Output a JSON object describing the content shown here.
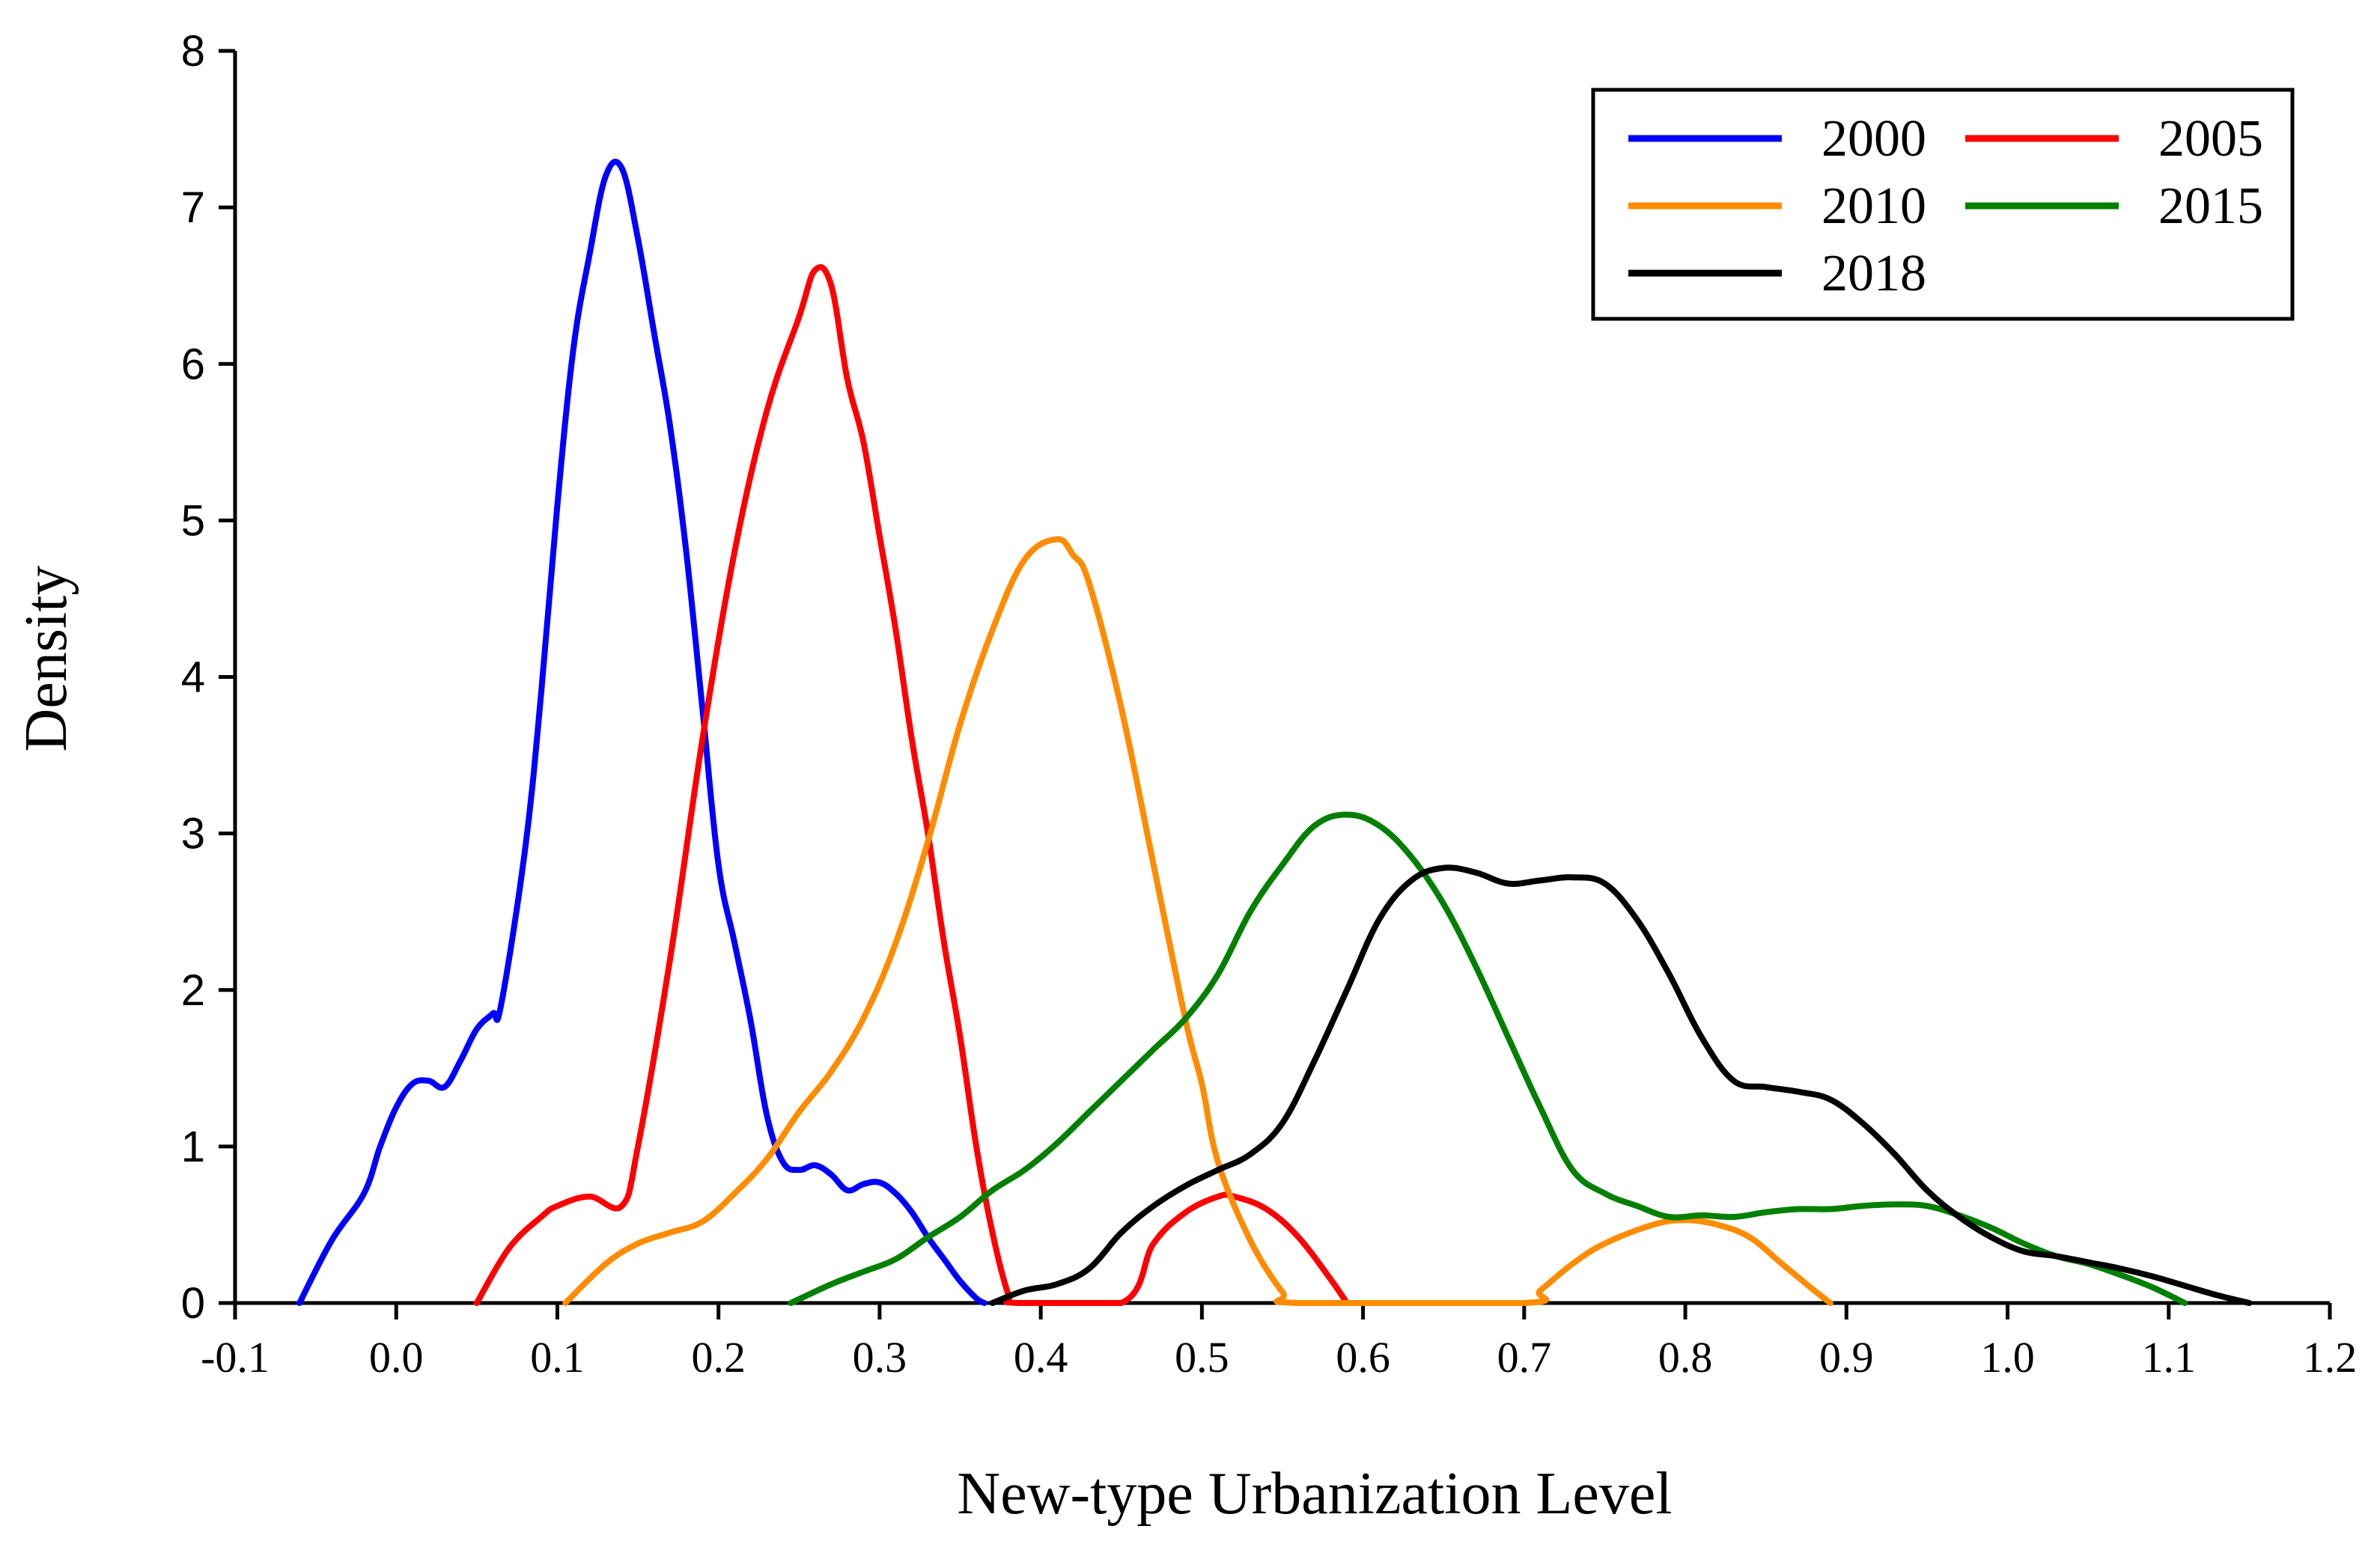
{
  "chart_data": {
    "type": "line",
    "title": "",
    "xlabel": "New-type Urbanization Level",
    "ylabel": "Density",
    "xlim": [
      -0.1,
      1.2
    ],
    "ylim": [
      0,
      8
    ],
    "xticks": [
      -0.1,
      0.0,
      0.1,
      0.2,
      0.3,
      0.4,
      0.5,
      0.6,
      0.7,
      0.8,
      0.9,
      1.0,
      1.1,
      1.2
    ],
    "xtick_labels": [
      "-0.1",
      "0.0",
      "0.1",
      "0.2",
      "0.3",
      "0.4",
      "0.5",
      "0.6",
      "0.7",
      "0.8",
      "0.9",
      "1.0",
      "1.1",
      "1.2"
    ],
    "yticks": [
      0,
      1,
      2,
      3,
      4,
      5,
      6,
      7,
      8
    ],
    "ytick_labels": [
      "0",
      "1",
      "2",
      "3",
      "4",
      "5",
      "6",
      "7",
      "8"
    ],
    "grid": false,
    "legend_position": "top-right",
    "series": [
      {
        "name": "2000",
        "color": "#0000ff",
        "x": [
          -0.06,
          -0.04,
          -0.02,
          -0.01,
          0.0,
          0.01,
          0.02,
          0.03,
          0.04,
          0.05,
          0.06,
          0.065,
          0.08,
          0.09,
          0.1,
          0.11,
          0.12,
          0.13,
          0.14,
          0.15,
          0.16,
          0.17,
          0.18,
          0.19,
          0.2,
          0.21,
          0.22,
          0.23,
          0.24,
          0.25,
          0.26,
          0.27,
          0.28,
          0.29,
          0.3,
          0.31,
          0.32,
          0.33,
          0.34,
          0.35,
          0.36,
          0.365
        ],
        "y": [
          0,
          0.4,
          0.7,
          1.0,
          1.25,
          1.4,
          1.42,
          1.38,
          1.55,
          1.75,
          1.85,
          1.9,
          2.9,
          3.9,
          5.1,
          6.1,
          6.7,
          7.2,
          7.25,
          6.8,
          6.2,
          5.6,
          4.8,
          3.8,
          2.8,
          2.3,
          1.8,
          1.2,
          0.9,
          0.85,
          0.88,
          0.82,
          0.72,
          0.76,
          0.77,
          0.7,
          0.58,
          0.42,
          0.28,
          0.14,
          0.03,
          0
        ],
        "name_color_note": ""
      },
      {
        "name": "2005",
        "color": "#ff0000",
        "x": [
          0.05,
          0.07,
          0.09,
          0.1,
          0.12,
          0.14,
          0.15,
          0.17,
          0.19,
          0.21,
          0.23,
          0.25,
          0.26,
          0.27,
          0.28,
          0.29,
          0.3,
          0.31,
          0.32,
          0.33,
          0.34,
          0.35,
          0.36,
          0.37,
          0.38,
          0.385,
          0.45,
          0.47,
          0.49,
          0.51,
          0.52,
          0.54,
          0.56,
          0.58,
          0.59
        ],
        "y": [
          0,
          0.35,
          0.55,
          0.62,
          0.68,
          0.62,
          1.0,
          2.2,
          3.6,
          4.8,
          5.7,
          6.3,
          6.6,
          6.5,
          5.9,
          5.5,
          4.9,
          4.3,
          3.6,
          3.0,
          2.3,
          1.7,
          1.0,
          0.45,
          0.05,
          0,
          0,
          0.38,
          0.58,
          0.68,
          0.68,
          0.6,
          0.42,
          0.15,
          0
        ],
        "name_color_note": ""
      },
      {
        "name": "2010",
        "color": "#ff8c00",
        "x": [
          0.105,
          0.13,
          0.15,
          0.17,
          0.19,
          0.21,
          0.23,
          0.25,
          0.27,
          0.29,
          0.31,
          0.33,
          0.35,
          0.37,
          0.39,
          0.41,
          0.42,
          0.43,
          0.45,
          0.47,
          0.49,
          0.5,
          0.51,
          0.53,
          0.55,
          0.56,
          0.7,
          0.71,
          0.73,
          0.75,
          0.78,
          0.8,
          0.82,
          0.84,
          0.86,
          0.88,
          0.89
        ],
        "y": [
          0,
          0.25,
          0.38,
          0.45,
          0.52,
          0.7,
          0.92,
          1.22,
          1.48,
          1.82,
          2.3,
          2.95,
          3.7,
          4.3,
          4.75,
          4.88,
          4.78,
          4.6,
          3.8,
          2.8,
          1.8,
          1.4,
          0.9,
          0.4,
          0.07,
          0,
          0,
          0.08,
          0.25,
          0.38,
          0.5,
          0.53,
          0.5,
          0.42,
          0.25,
          0.08,
          0
        ],
        "name_color_note": ""
      },
      {
        "name": "2015",
        "color": "#008000",
        "x": [
          0.245,
          0.27,
          0.29,
          0.31,
          0.33,
          0.35,
          0.37,
          0.39,
          0.41,
          0.43,
          0.45,
          0.47,
          0.49,
          0.51,
          0.53,
          0.55,
          0.57,
          0.59,
          0.61,
          0.63,
          0.65,
          0.67,
          0.69,
          0.71,
          0.73,
          0.75,
          0.77,
          0.79,
          0.81,
          0.83,
          0.85,
          0.87,
          0.89,
          0.91,
          0.93,
          0.95,
          0.97,
          0.99,
          1.01,
          1.03,
          1.05,
          1.07,
          1.09,
          1.11
        ],
        "y": [
          0,
          0.12,
          0.2,
          0.28,
          0.42,
          0.55,
          0.72,
          0.85,
          1.02,
          1.22,
          1.42,
          1.62,
          1.82,
          2.1,
          2.5,
          2.8,
          3.05,
          3.12,
          3.05,
          2.85,
          2.55,
          2.15,
          1.7,
          1.25,
          0.85,
          0.7,
          0.62,
          0.55,
          0.56,
          0.55,
          0.58,
          0.6,
          0.6,
          0.62,
          0.63,
          0.62,
          0.56,
          0.48,
          0.38,
          0.3,
          0.25,
          0.18,
          0.1,
          0
        ],
        "name_color_note": ""
      },
      {
        "name": "2018",
        "color": "#000000",
        "x": [
          0.37,
          0.39,
          0.41,
          0.43,
          0.45,
          0.47,
          0.49,
          0.51,
          0.53,
          0.55,
          0.57,
          0.59,
          0.61,
          0.63,
          0.65,
          0.67,
          0.69,
          0.71,
          0.73,
          0.75,
          0.77,
          0.79,
          0.81,
          0.83,
          0.85,
          0.87,
          0.89,
          0.91,
          0.93,
          0.95,
          0.97,
          0.99,
          1.01,
          1.03,
          1.05,
          1.07,
          1.09,
          1.11,
          1.13,
          1.15
        ],
        "y": [
          0,
          0.08,
          0.12,
          0.22,
          0.45,
          0.62,
          0.75,
          0.85,
          0.95,
          1.15,
          1.55,
          2.0,
          2.45,
          2.7,
          2.78,
          2.75,
          2.68,
          2.7,
          2.72,
          2.68,
          2.45,
          2.1,
          1.7,
          1.42,
          1.38,
          1.35,
          1.3,
          1.15,
          0.95,
          0.72,
          0.55,
          0.42,
          0.33,
          0.3,
          0.26,
          0.22,
          0.17,
          0.11,
          0.05,
          0
        ],
        "name_color_note": ""
      }
    ]
  }
}
